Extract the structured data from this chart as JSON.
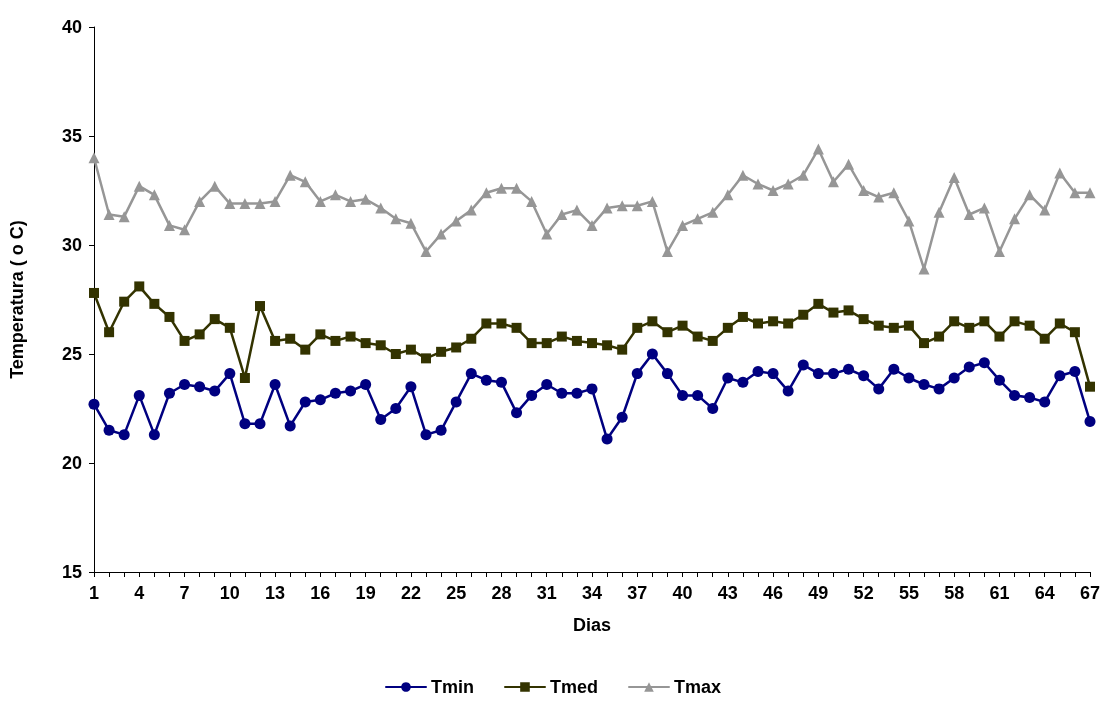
{
  "chart_data": {
    "type": "line",
    "xlabel": "Dias",
    "ylabel": "Temperatura ( o C)",
    "categories": [
      "1",
      null,
      null,
      "4",
      null,
      null,
      "7",
      null,
      null,
      "10",
      null,
      null,
      "13",
      null,
      null,
      "16",
      null,
      null,
      "19",
      null,
      null,
      "22",
      null,
      null,
      "25",
      null,
      null,
      "28",
      null,
      null,
      "31",
      null,
      null,
      "34",
      null,
      null,
      "37",
      null,
      null,
      "40",
      null,
      null,
      "43",
      null,
      null,
      "46",
      null,
      null,
      "49",
      null,
      null,
      "52",
      null,
      null,
      "55",
      null,
      null,
      "58",
      null,
      null,
      "61",
      null,
      null,
      "64",
      null,
      null,
      "67"
    ],
    "series": [
      {
        "name": "Tmin",
        "color": "#000080",
        "marker": "circle",
        "values": [
          22.7,
          21.5,
          21.3,
          23.1,
          21.3,
          23.2,
          23.6,
          23.5,
          23.3,
          24.1,
          21.8,
          21.8,
          23.6,
          21.7,
          22.8,
          22.9,
          23.2,
          23.3,
          23.6,
          22.0,
          22.5,
          23.5,
          21.3,
          21.5,
          22.8,
          24.1,
          23.8,
          23.7,
          22.3,
          23.1,
          23.6,
          23.2,
          23.2,
          23.4,
          21.1,
          22.1,
          24.1,
          25.0,
          24.1,
          23.1,
          23.1,
          22.5,
          23.9,
          23.7,
          24.2,
          24.1,
          23.3,
          24.5,
          24.1,
          24.1,
          24.3,
          24.0,
          23.4,
          24.3,
          23.9,
          23.6,
          23.4,
          23.9,
          24.4,
          24.6,
          23.8,
          23.1,
          23.0,
          22.8,
          24.0,
          24.2,
          21.9
        ]
      },
      {
        "name": "Tmed",
        "color": "#333300",
        "marker": "square",
        "values": [
          27.8,
          26.0,
          27.4,
          28.1,
          27.3,
          26.7,
          25.6,
          25.9,
          26.6,
          26.2,
          23.9,
          27.2,
          25.6,
          25.7,
          25.2,
          25.9,
          25.6,
          25.8,
          25.5,
          25.4,
          25.0,
          25.2,
          24.8,
          25.1,
          25.3,
          25.7,
          26.4,
          26.4,
          26.2,
          25.5,
          25.5,
          25.8,
          25.6,
          25.5,
          25.4,
          25.2,
          26.2,
          26.5,
          26.0,
          26.3,
          25.8,
          25.6,
          26.2,
          26.7,
          26.4,
          26.5,
          26.4,
          26.8,
          27.3,
          26.9,
          27.0,
          26.6,
          26.3,
          26.2,
          26.3,
          25.5,
          25.8,
          26.5,
          26.2,
          26.5,
          25.8,
          26.5,
          26.3,
          25.7,
          26.4,
          26.0,
          23.5
        ]
      },
      {
        "name": "Tmax",
        "color": "#969696",
        "marker": "triangle",
        "values": [
          34.0,
          31.4,
          31.3,
          32.7,
          32.3,
          30.9,
          30.7,
          32.0,
          32.7,
          31.9,
          31.9,
          31.9,
          32.0,
          33.2,
          32.9,
          32.0,
          32.3,
          32.0,
          32.1,
          31.7,
          31.2,
          31.0,
          29.7,
          30.5,
          31.1,
          31.6,
          32.4,
          32.6,
          32.6,
          32.0,
          30.5,
          31.4,
          31.6,
          30.9,
          31.7,
          31.8,
          31.8,
          32.0,
          29.7,
          30.9,
          31.2,
          31.5,
          32.3,
          33.2,
          32.8,
          32.5,
          32.8,
          33.2,
          34.4,
          32.9,
          33.7,
          32.5,
          32.2,
          32.4,
          31.1,
          28.9,
          31.5,
          33.1,
          31.4,
          31.7,
          29.7,
          31.2,
          32.3,
          31.6,
          33.3,
          32.4,
          32.4
        ]
      }
    ],
    "ylim": [
      15,
      40
    ],
    "yticks": [
      15,
      20,
      25,
      30,
      35,
      40
    ],
    "grid": false,
    "legend": "bottom",
    "line_style": "solid"
  }
}
